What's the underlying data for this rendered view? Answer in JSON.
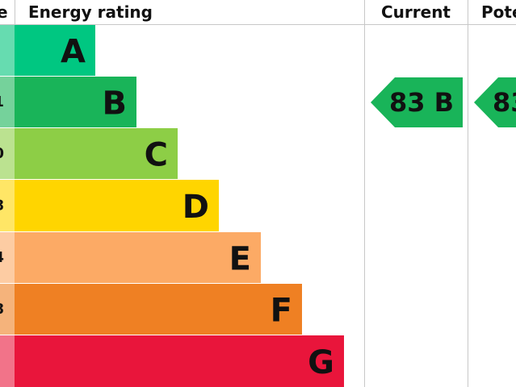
{
  "header": {
    "score": "e",
    "rating": "Energy rating",
    "current": "Current",
    "potential": "Pote"
  },
  "bands": [
    {
      "letter": "A"
    },
    {
      "letter": "B",
      "score": "1"
    },
    {
      "letter": "C",
      "score": "0"
    },
    {
      "letter": "D",
      "score": "8"
    },
    {
      "letter": "E",
      "score": "4"
    },
    {
      "letter": "F",
      "score": "8"
    },
    {
      "letter": "G"
    }
  ],
  "current": {
    "label": "83 B"
  },
  "potential": {
    "label": "83"
  }
}
